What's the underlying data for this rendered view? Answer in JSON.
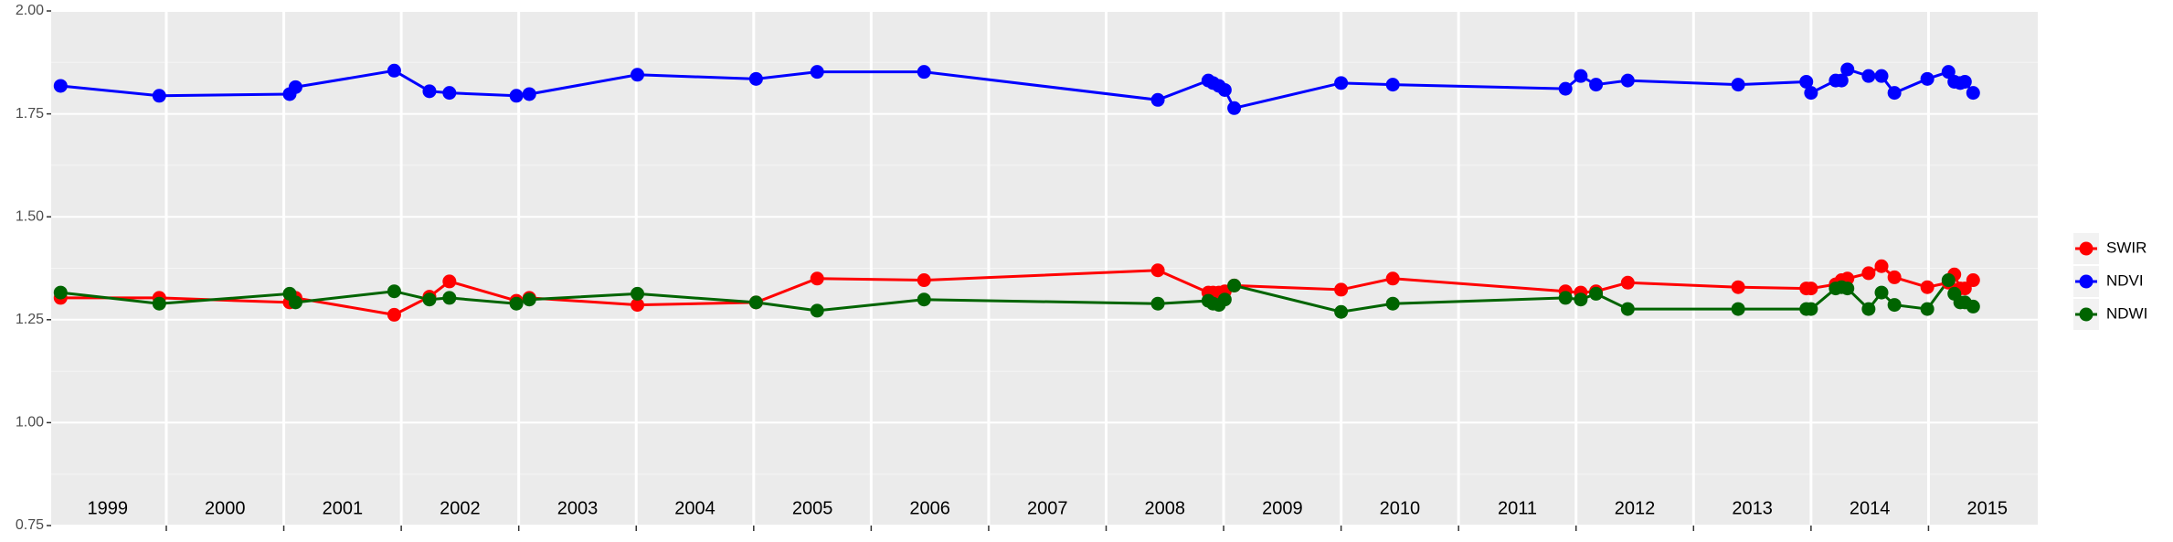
{
  "chart_data": {
    "type": "line",
    "x": [
      1999.1,
      1999.94,
      2001.05,
      2001.1,
      2001.94,
      2002.24,
      2002.41,
      2002.98,
      2003.09,
      2004.01,
      2005.02,
      2005.54,
      2006.45,
      2008.44,
      2008.87,
      2008.91,
      2008.96,
      2009.01,
      2009.09,
      2010.0,
      2010.44,
      2011.91,
      2012.04,
      2012.17,
      2012.44,
      2013.38,
      2013.96,
      2014.0,
      2014.21,
      2014.26,
      2014.31,
      2014.49,
      2014.6,
      2014.71,
      2014.99,
      2015.17,
      2015.22,
      2015.27,
      2015.31,
      2015.38
    ],
    "series": [
      {
        "name": "SWIR",
        "color": "#ff0000",
        "values": [
          1.303,
          1.303,
          1.292,
          1.303,
          1.262,
          1.306,
          1.343,
          1.296,
          1.303,
          1.286,
          1.292,
          1.35,
          1.346,
          1.37,
          1.316,
          1.316,
          1.316,
          1.319,
          1.333,
          1.323,
          1.35,
          1.319,
          1.316,
          1.319,
          1.34,
          1.329,
          1.326,
          1.326,
          1.336,
          1.346,
          1.35,
          1.363,
          1.38,
          1.353,
          1.329,
          1.34,
          1.36,
          1.326,
          1.326,
          1.346
        ]
      },
      {
        "name": "NDVI",
        "color": "#0000ff",
        "values": [
          1.818,
          1.794,
          1.798,
          1.815,
          1.855,
          1.805,
          1.801,
          1.794,
          1.798,
          1.845,
          1.835,
          1.852,
          1.852,
          1.784,
          1.831,
          1.825,
          1.818,
          1.808,
          1.764,
          1.825,
          1.821,
          1.811,
          1.842,
          1.821,
          1.831,
          1.821,
          1.828,
          1.801,
          1.831,
          1.831,
          1.858,
          1.842,
          1.842,
          1.801,
          1.835,
          1.852,
          1.828,
          1.825,
          1.828,
          1.801
        ]
      },
      {
        "name": "NDWI",
        "color": "#006400",
        "values": [
          1.316,
          1.289,
          1.313,
          1.292,
          1.319,
          1.299,
          1.303,
          1.289,
          1.299,
          1.313,
          1.292,
          1.272,
          1.299,
          1.289,
          1.296,
          1.289,
          1.286,
          1.299,
          1.333,
          1.269,
          1.289,
          1.303,
          1.299,
          1.313,
          1.276,
          1.276,
          1.276,
          1.276,
          1.326,
          1.329,
          1.326,
          1.276,
          1.316,
          1.286,
          1.276,
          1.346,
          1.313,
          1.292,
          1.292,
          1.282
        ]
      }
    ],
    "xlim": [
      1999.02,
      2015.93
    ],
    "xticks": [
      2000,
      2001,
      2002,
      2003,
      2004,
      2005,
      2006,
      2007,
      2008,
      2009,
      2010,
      2011,
      2012,
      2013,
      2014,
      2015
    ],
    "year_labels": [
      {
        "value": 1999.5,
        "label": "1999"
      },
      {
        "value": 2000.5,
        "label": "2000"
      },
      {
        "value": 2001.5,
        "label": "2001"
      },
      {
        "value": 2002.5,
        "label": "2002"
      },
      {
        "value": 2003.5,
        "label": "2003"
      },
      {
        "value": 2004.5,
        "label": "2004"
      },
      {
        "value": 2005.5,
        "label": "2005"
      },
      {
        "value": 2006.5,
        "label": "2006"
      },
      {
        "value": 2007.5,
        "label": "2007"
      },
      {
        "value": 2008.5,
        "label": "2008"
      },
      {
        "value": 2009.5,
        "label": "2009"
      },
      {
        "value": 2010.5,
        "label": "2010"
      },
      {
        "value": 2011.5,
        "label": "2011"
      },
      {
        "value": 2012.5,
        "label": "2012"
      },
      {
        "value": 2013.5,
        "label": "2013"
      },
      {
        "value": 2014.5,
        "label": "2014"
      },
      {
        "value": 2015.5,
        "label": "2015"
      }
    ],
    "ylim": [
      0.75,
      2.0
    ],
    "yticks": [
      {
        "value": 0.75,
        "label": "0.75"
      },
      {
        "value": 1.0,
        "label": "1.00"
      },
      {
        "value": 1.25,
        "label": "1.25"
      },
      {
        "value": 1.5,
        "label": "1.50"
      },
      {
        "value": 1.75,
        "label": "1.75"
      },
      {
        "value": 2.0,
        "label": "2.00"
      }
    ],
    "y_minor_ticks": [
      0.875,
      1.125,
      1.375,
      1.625,
      1.875
    ],
    "grid": true,
    "legend": "right"
  }
}
